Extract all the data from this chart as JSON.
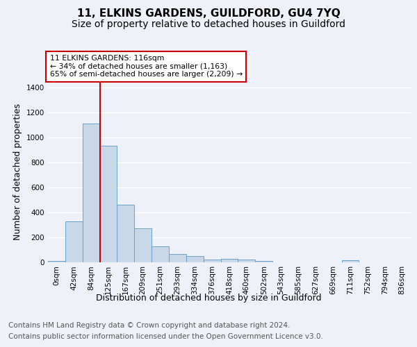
{
  "title1": "11, ELKINS GARDENS, GUILDFORD, GU4 7YQ",
  "title2": "Size of property relative to detached houses in Guildford",
  "xlabel": "Distribution of detached houses by size in Guildford",
  "ylabel": "Number of detached properties",
  "footer1": "Contains HM Land Registry data © Crown copyright and database right 2024.",
  "footer2": "Contains public sector information licensed under the Open Government Licence v3.0.",
  "bar_labels": [
    "0sqm",
    "42sqm",
    "84sqm",
    "125sqm",
    "167sqm",
    "209sqm",
    "251sqm",
    "293sqm",
    "334sqm",
    "376sqm",
    "418sqm",
    "460sqm",
    "502sqm",
    "543sqm",
    "585sqm",
    "627sqm",
    "669sqm",
    "711sqm",
    "752sqm",
    "794sqm",
    "836sqm"
  ],
  "bar_values": [
    10,
    325,
    1110,
    935,
    460,
    270,
    125,
    65,
    45,
    20,
    25,
    20,
    10,
    0,
    0,
    0,
    0,
    15,
    0,
    0,
    0
  ],
  "bar_color": "#c8d8e8",
  "bar_edgecolor": "#6aa0c8",
  "red_line_x": 2.5,
  "annotation_title": "11 ELKINS GARDENS: 116sqm",
  "annotation_line1": "← 34% of detached houses are smaller (1,163)",
  "annotation_line2": "65% of semi-detached houses are larger (2,209) →",
  "annotation_box_color": "#ffffff",
  "annotation_box_edgecolor": "#cc0000",
  "red_line_color": "#cc0000",
  "ylim": [
    0,
    1450
  ],
  "yticks": [
    0,
    200,
    400,
    600,
    800,
    1000,
    1200,
    1400
  ],
  "bg_color": "#eef2f8",
  "plot_bg_color": "#eef2f8",
  "grid_color": "#ffffff",
  "title_fontsize": 11,
  "subtitle_fontsize": 10,
  "axis_label_fontsize": 9,
  "tick_fontsize": 7.5,
  "footer_fontsize": 7.5
}
